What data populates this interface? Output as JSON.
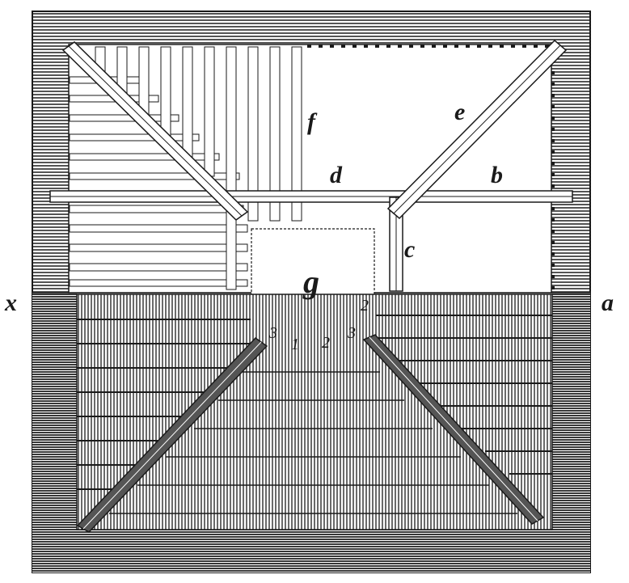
{
  "figure": {
    "labels": {
      "a": "a",
      "b": "b",
      "c": "c",
      "d": "d",
      "e": "e",
      "f": "f",
      "g": "g",
      "x_left": "x"
    },
    "numbers": {
      "n1": "1",
      "n2_bottom": "2",
      "n2_right": "2",
      "n3_left": "3",
      "n3_right": "3"
    },
    "colors": {
      "ink": "#1a1a1a",
      "paper": "#ffffff",
      "frame_hatch": "#2a2a2a",
      "dark_band": "#222222"
    }
  }
}
